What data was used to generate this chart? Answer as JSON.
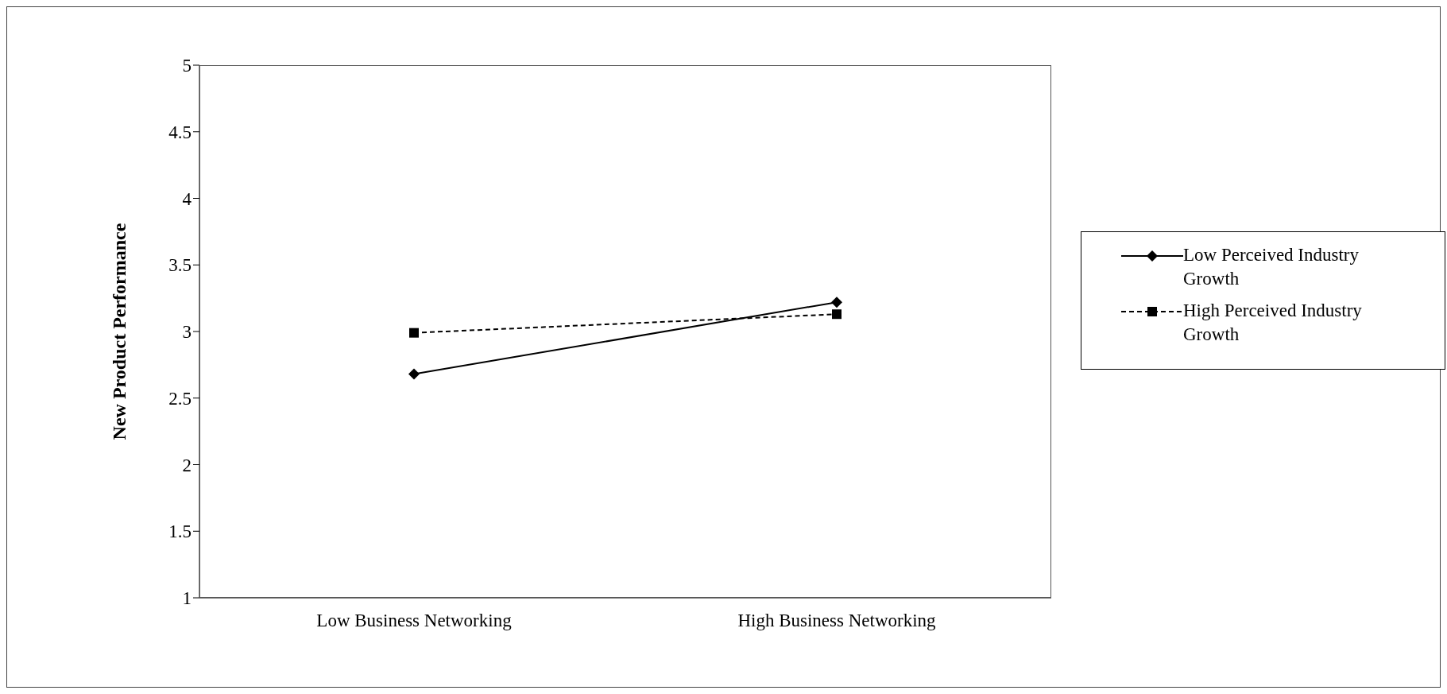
{
  "chart_data": {
    "type": "line",
    "categories": [
      "Low Business Networking",
      "High Business Networking"
    ],
    "ylabel": "New Product Performance",
    "ylim": [
      1,
      5
    ],
    "yticks": [
      1,
      1.5,
      2,
      2.5,
      3,
      3.5,
      4,
      4.5,
      5
    ],
    "grid": false,
    "legend": "right",
    "series": [
      {
        "name": "Low Perceived Industry Growth",
        "color": "#000000",
        "values": [
          2.68,
          3.22
        ],
        "marker": "diamond",
        "line_style": "solid"
      },
      {
        "name": "High Perceived Industry Growth",
        "color": "#000000",
        "values": [
          2.99,
          3.13
        ],
        "marker": "square",
        "line_style": "dashed"
      }
    ]
  }
}
